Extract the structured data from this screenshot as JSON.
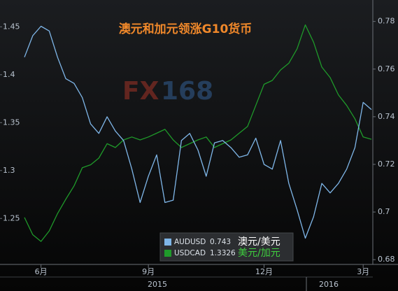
{
  "chart_data": {
    "type": "line",
    "title": "澳元和加元领涨G10货币",
    "watermark": [
      "FX",
      "168"
    ],
    "categories": [
      null,
      null,
      "6月",
      null,
      null,
      null,
      null,
      null,
      null,
      null,
      null,
      null,
      null,
      null,
      null,
      "9月",
      null,
      null,
      null,
      null,
      null,
      null,
      null,
      null,
      null,
      null,
      null,
      null,
      null,
      "12月",
      null,
      null,
      null,
      null,
      null,
      null,
      null,
      null,
      null,
      null,
      null,
      "3月",
      null
    ],
    "years": [
      "2015",
      "2016"
    ],
    "series": [
      {
        "name": "AUDUSD",
        "last": 0.743,
        "label_cn": "澳元/美元",
        "label_color": "#ffffff",
        "color": "#7fb6e8",
        "axis": "y2",
        "values": [
          0.765,
          0.774,
          0.778,
          0.776,
          0.765,
          0.756,
          0.754,
          0.748,
          0.737,
          0.733,
          0.74,
          0.734,
          0.73,
          0.718,
          0.704,
          0.715,
          0.724,
          0.704,
          0.705,
          0.73,
          0.733,
          0.726,
          0.715,
          0.729,
          0.73,
          0.727,
          0.723,
          0.724,
          0.731,
          0.72,
          0.718,
          0.73,
          0.712,
          0.701,
          0.689,
          0.698,
          0.712,
          0.708,
          0.712,
          0.718,
          0.727,
          0.746,
          0.743
        ]
      },
      {
        "name": "USDCAD",
        "last": 1.3326,
        "label_cn": "美元/加元",
        "label_color": "#3fcf3f",
        "color": "#1f9a2a",
        "values": [
          1.251,
          1.233,
          1.226,
          1.237,
          1.255,
          1.27,
          1.284,
          1.303,
          1.306,
          1.313,
          1.328,
          1.324,
          1.332,
          1.335,
          1.332,
          1.335,
          1.339,
          1.343,
          1.332,
          1.324,
          1.328,
          1.332,
          1.335,
          1.324,
          1.328,
          1.332,
          1.339,
          1.346,
          1.368,
          1.39,
          1.394,
          1.405,
          1.412,
          1.427,
          1.452,
          1.434,
          1.408,
          1.397,
          1.379,
          1.368,
          1.354,
          1.335,
          1.3326
        ]
      }
    ],
    "ylim": [
      1.202,
      1.478
    ],
    "yticks": [
      1.25,
      1.3,
      1.35,
      1.4,
      1.45
    ],
    "y2lim": [
      0.678,
      0.789
    ],
    "y2ticks": [
      0.68,
      0.7,
      0.72,
      0.74,
      0.76,
      0.78
    ],
    "grid": false
  }
}
